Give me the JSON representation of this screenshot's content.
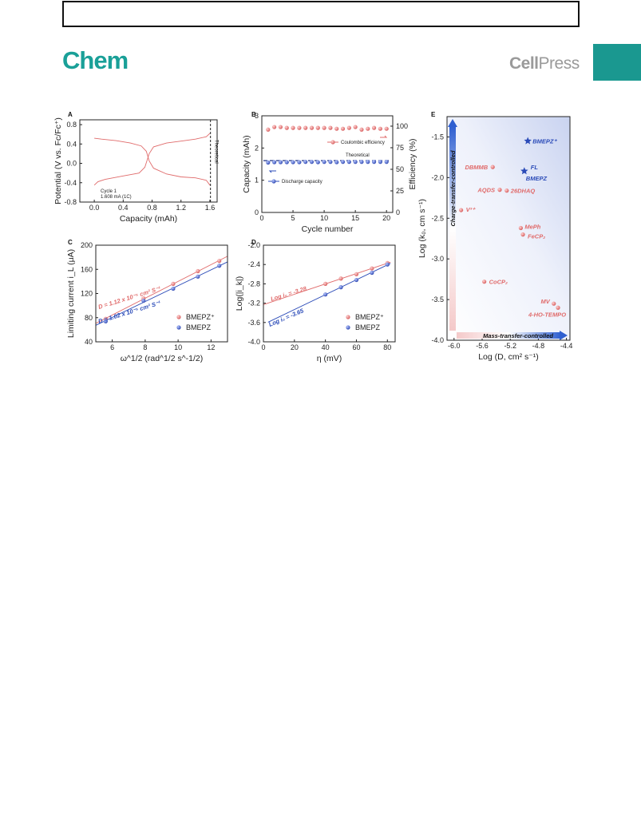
{
  "header": {
    "journal": "Chem",
    "publisher_bold": "Cell",
    "publisher_rest": "Press"
  },
  "colors": {
    "teal": "#1aa098",
    "red": "#e06b6b",
    "blue": "#2b4bb8"
  },
  "chart_data": [
    {
      "panel": "A",
      "type": "line",
      "xlabel": "Capacity (mAh)",
      "ylabel": "Potential (V vs. Fc/Fc⁺)",
      "xlim": [
        -0.2,
        1.7
      ],
      "ylim": [
        -0.8,
        0.9
      ],
      "xticks": [
        "0.0",
        "0.4",
        "0.8",
        "1.2",
        "1.6"
      ],
      "yticks": [
        "-0.8",
        "-0.4",
        "0.0",
        "0.4",
        "0.8"
      ],
      "annotation_line1": "Cycle 1",
      "annotation_line2": "1.608 mA (1C)",
      "vline_label": "Theoretical",
      "vline_x": 1.608,
      "charge": {
        "x": [
          0,
          0.1,
          0.3,
          0.5,
          0.65,
          0.72,
          0.76,
          0.82,
          1.0,
          1.2,
          1.4,
          1.55,
          1.6
        ],
        "y": [
          0.52,
          0.5,
          0.47,
          0.42,
          0.36,
          0.25,
          0.05,
          -0.1,
          -0.22,
          -0.28,
          -0.3,
          -0.35,
          -0.45
        ]
      },
      "discharge": {
        "x": [
          0,
          0.05,
          0.15,
          0.4,
          0.62,
          0.7,
          0.76,
          0.82,
          1.0,
          1.2,
          1.4,
          1.55,
          1.6
        ],
        "y": [
          -0.45,
          -0.38,
          -0.33,
          -0.26,
          -0.2,
          -0.08,
          0.2,
          0.34,
          0.42,
          0.46,
          0.5,
          0.55,
          0.62
        ]
      }
    },
    {
      "panel": "B",
      "type": "scatter",
      "xlabel": "Cycle number",
      "ylabel_left": "Capacity (mAh)",
      "ylabel_right": "Efficiency (%)",
      "xlim": [
        0,
        21
      ],
      "ylim_left": [
        0,
        3
      ],
      "ylim_right": [
        0,
        112
      ],
      "xticks": [
        "0",
        "5",
        "10",
        "15",
        "20"
      ],
      "yticks_left": [
        "0",
        "1",
        "2",
        "3"
      ],
      "yticks_right": [
        "0",
        "25",
        "50",
        "75",
        "100"
      ],
      "theoretical_label": "Theoretical",
      "theoretical_value": 1.608,
      "series": [
        {
          "name": "Coulombic efficiency",
          "axis": "right",
          "x": [
            1,
            2,
            3,
            4,
            5,
            6,
            7,
            8,
            9,
            10,
            11,
            12,
            13,
            14,
            15,
            16,
            17,
            18,
            19,
            20
          ],
          "values": [
            96,
            99,
            99,
            98,
            98,
            98,
            98,
            98,
            98,
            98,
            98,
            97,
            97,
            98,
            99,
            96,
            97,
            98,
            97,
            97
          ]
        },
        {
          "name": "Discharge capacity",
          "axis": "left",
          "x": [
            1,
            2,
            3,
            4,
            5,
            6,
            7,
            8,
            9,
            10,
            11,
            12,
            13,
            14,
            15,
            16,
            17,
            18,
            19,
            20
          ],
          "values": [
            1.55,
            1.56,
            1.56,
            1.56,
            1.56,
            1.56,
            1.57,
            1.57,
            1.56,
            1.57,
            1.57,
            1.56,
            1.57,
            1.57,
            1.57,
            1.57,
            1.57,
            1.57,
            1.57,
            1.57
          ]
        }
      ]
    },
    {
      "panel": "C",
      "type": "scatter",
      "xlabel": "ω^1/2 (rad^1/2 s^-1/2)",
      "ylabel": "Limiting current i_L (μA)",
      "xlim": [
        5,
        13
      ],
      "ylim": [
        40,
        200
      ],
      "xticks": [
        "6",
        "8",
        "10",
        "12"
      ],
      "yticks": [
        "40",
        "80",
        "120",
        "160",
        "200"
      ],
      "fit_red": "D = 1.12 x 10⁻⁵ cm² S⁻¹",
      "fit_blue": "D = 1.02 x 10⁻⁵ cm² S⁻¹",
      "series": [
        {
          "name": "BMEPZ⁺",
          "x": [
            5.6,
            7.9,
            9.7,
            11.2,
            12.5
          ],
          "values": [
            78,
            112,
            136,
            157,
            174
          ]
        },
        {
          "name": "BMEPZ",
          "x": [
            5.6,
            7.9,
            9.7,
            11.2,
            12.5
          ],
          "values": [
            74,
            108,
            128,
            148,
            166
          ]
        }
      ]
    },
    {
      "panel": "D",
      "type": "scatter",
      "xlabel": "η (mV)",
      "ylabel": "Log(|i_k|)",
      "xlim": [
        0,
        85
      ],
      "ylim": [
        -4.0,
        -2.0
      ],
      "xticks": [
        "0",
        "20",
        "40",
        "60",
        "80"
      ],
      "yticks": [
        "-4.0",
        "-3.6",
        "-3.2",
        "-2.8",
        "-2.4",
        "-2.0"
      ],
      "fit_red": "Log i₀ = -3.28",
      "fit_blue": "Log i₀ = -3.65",
      "series": [
        {
          "name": "BMEPZ⁺",
          "x": [
            40,
            50,
            60,
            70,
            80
          ],
          "values": [
            -2.8,
            -2.69,
            -2.6,
            -2.48,
            -2.37
          ]
        },
        {
          "name": "BMEPZ",
          "x": [
            40,
            50,
            60,
            70,
            80
          ],
          "values": [
            -3.02,
            -2.87,
            -2.72,
            -2.57,
            -2.4
          ]
        }
      ]
    },
    {
      "panel": "E",
      "type": "scatter",
      "xlabel": "Log (D, cm² s⁻¹)",
      "ylabel": "Log (k₀, cm s⁻¹)",
      "xlim": [
        -6.1,
        -4.35
      ],
      "ylim": [
        -4.0,
        -1.25
      ],
      "xticks": [
        "-6.0",
        "-5.6",
        "-5.2",
        "-4.8",
        "-4.4"
      ],
      "yticks": [
        "-4.0",
        "-3.5",
        "-3.0",
        "-2.5",
        "-2.0",
        "-1.5"
      ],
      "vertical_arrow_label": "Charge-transfer-controlled",
      "horizontal_arrow_label": "Mass-transfer-controlled",
      "points": [
        {
          "name": "BMEPZ⁺",
          "x": -4.95,
          "y": -1.55,
          "marker": "star",
          "color": "blue"
        },
        {
          "name": "FL",
          "x": -5.0,
          "y": -1.92,
          "marker": "star",
          "color": "blue"
        },
        {
          "name": "BMEPZ",
          "x": -5.0,
          "y": -1.92,
          "marker": "none",
          "color": "blue"
        },
        {
          "name": "DBMMB",
          "x": -5.45,
          "y": -1.87,
          "marker": "circle",
          "color": "red"
        },
        {
          "name": "AQDS",
          "x": -5.35,
          "y": -2.15,
          "marker": "circle",
          "color": "red"
        },
        {
          "name": "26DHAQ",
          "x": -5.25,
          "y": -2.16,
          "marker": "circle",
          "color": "red"
        },
        {
          "name": "V³⁺",
          "x": -5.9,
          "y": -2.4,
          "marker": "circle",
          "color": "red"
        },
        {
          "name": "MePh",
          "x": -5.05,
          "y": -2.62,
          "marker": "circle",
          "color": "red"
        },
        {
          "name": "FeCP₂",
          "x": -5.02,
          "y": -2.7,
          "marker": "circle",
          "color": "red"
        },
        {
          "name": "CoCP₂",
          "x": -5.57,
          "y": -3.28,
          "marker": "circle",
          "color": "red"
        },
        {
          "name": "MV",
          "x": -4.58,
          "y": -3.55,
          "marker": "circle",
          "color": "red"
        },
        {
          "name": "4-HO-TEMPO",
          "x": -4.52,
          "y": -3.6,
          "marker": "circle",
          "color": "red"
        }
      ]
    }
  ]
}
